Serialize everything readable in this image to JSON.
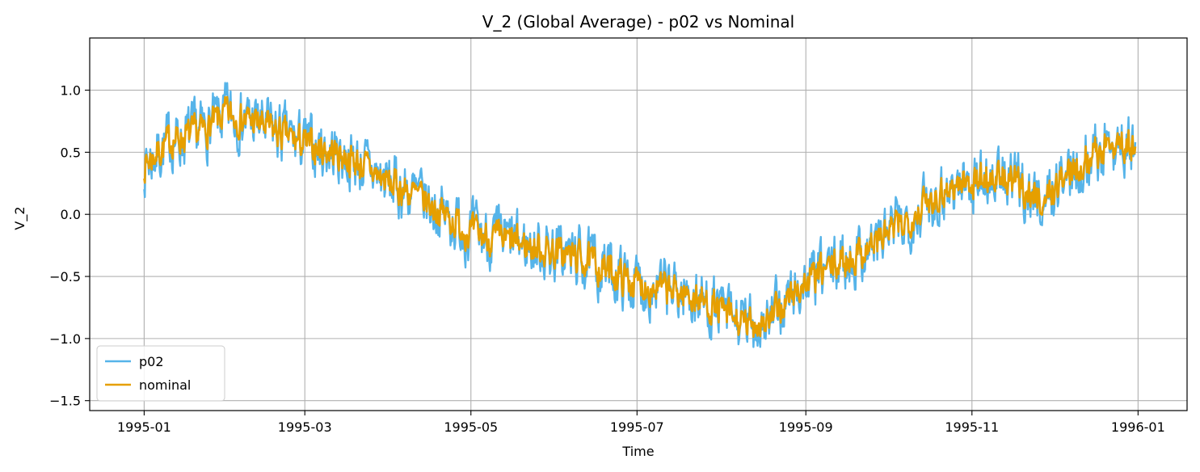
{
  "chart_data": {
    "type": "line",
    "title": "V_2 (Global Average) - p02 vs Nominal",
    "xlabel": "Time",
    "ylabel": "V_2",
    "x_range": [
      "1994-12-12",
      "1996-01-19"
    ],
    "x_ticks": [
      "1995-01",
      "1995-03",
      "1995-05",
      "1995-07",
      "1995-09",
      "1995-11",
      "1996-01"
    ],
    "ylim": [
      -1.58,
      1.42
    ],
    "y_ticks": [
      1.0,
      0.5,
      0.0,
      -0.5,
      -1.0,
      -1.5
    ],
    "y_tick_labels": [
      "1.0",
      "0.5",
      "0.0",
      "−0.5",
      "−1.0",
      "−1.5"
    ],
    "grid": true,
    "legend_position": "lower-left",
    "series": [
      {
        "name": "p02",
        "color": "#56B4E9",
        "x_start": "1995-01-01",
        "x_end": "1995-12-31",
        "anchors": [
          [
            0,
            0.4
          ],
          [
            10,
            0.6
          ],
          [
            20,
            0.65
          ],
          [
            30,
            0.8
          ],
          [
            40,
            0.75
          ],
          [
            50,
            0.65
          ],
          [
            60,
            0.55
          ],
          [
            70,
            0.5
          ],
          [
            80,
            0.4
          ],
          [
            90,
            0.25
          ],
          [
            100,
            0.15
          ],
          [
            110,
            0.0
          ],
          [
            120,
            -0.15
          ],
          [
            130,
            -0.2
          ],
          [
            140,
            -0.25
          ],
          [
            150,
            -0.3
          ],
          [
            160,
            -0.35
          ],
          [
            170,
            -0.45
          ],
          [
            180,
            -0.55
          ],
          [
            190,
            -0.6
          ],
          [
            200,
            -0.65
          ],
          [
            210,
            -0.75
          ],
          [
            220,
            -0.9
          ],
          [
            230,
            -0.85
          ],
          [
            240,
            -0.6
          ],
          [
            250,
            -0.45
          ],
          [
            260,
            -0.35
          ],
          [
            270,
            -0.2
          ],
          [
            280,
            -0.05
          ],
          [
            290,
            0.15
          ],
          [
            300,
            0.25
          ],
          [
            310,
            0.3
          ],
          [
            320,
            0.25
          ],
          [
            330,
            0.1
          ],
          [
            340,
            0.35
          ],
          [
            350,
            0.5
          ],
          [
            358,
            0.6
          ],
          [
            364,
            0.5
          ]
        ],
        "noise": 0.23,
        "seed": 7
      },
      {
        "name": "nominal",
        "color": "#E69F00",
        "x_start": "1995-01-01",
        "x_end": "1995-12-31",
        "anchors": [
          [
            0,
            0.4
          ],
          [
            10,
            0.6
          ],
          [
            20,
            0.65
          ],
          [
            30,
            0.8
          ],
          [
            40,
            0.75
          ],
          [
            50,
            0.65
          ],
          [
            60,
            0.55
          ],
          [
            70,
            0.5
          ],
          [
            80,
            0.4
          ],
          [
            90,
            0.25
          ],
          [
            100,
            0.15
          ],
          [
            110,
            0.0
          ],
          [
            120,
            -0.15
          ],
          [
            130,
            -0.2
          ],
          [
            140,
            -0.25
          ],
          [
            150,
            -0.3
          ],
          [
            160,
            -0.35
          ],
          [
            170,
            -0.45
          ],
          [
            180,
            -0.55
          ],
          [
            190,
            -0.6
          ],
          [
            200,
            -0.65
          ],
          [
            210,
            -0.75
          ],
          [
            220,
            -0.9
          ],
          [
            230,
            -0.85
          ],
          [
            240,
            -0.6
          ],
          [
            250,
            -0.45
          ],
          [
            260,
            -0.35
          ],
          [
            270,
            -0.2
          ],
          [
            280,
            -0.05
          ],
          [
            290,
            0.15
          ],
          [
            300,
            0.25
          ],
          [
            310,
            0.3
          ],
          [
            320,
            0.25
          ],
          [
            330,
            0.1
          ],
          [
            340,
            0.35
          ],
          [
            350,
            0.5
          ],
          [
            358,
            0.6
          ],
          [
            364,
            0.5
          ]
        ],
        "noise": 0.13,
        "seed": 7
      }
    ]
  }
}
